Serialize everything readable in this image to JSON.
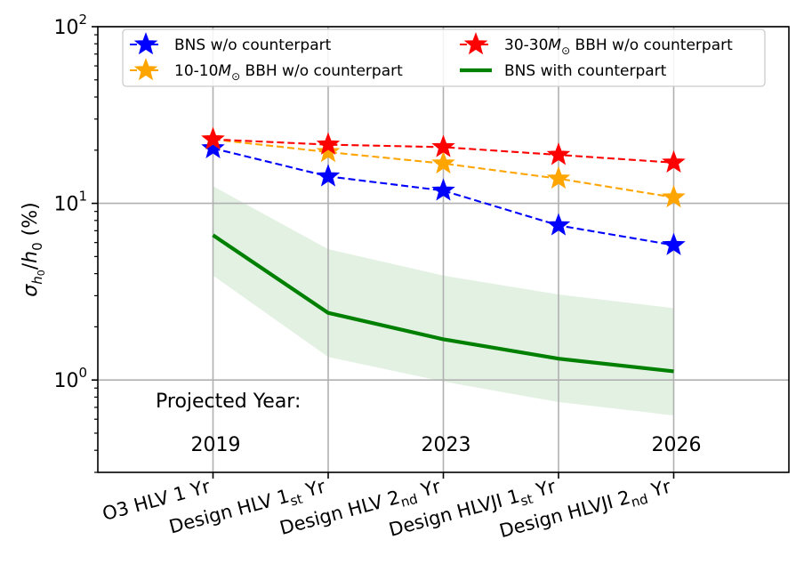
{
  "chart_data": {
    "type": "line",
    "yscale": "log",
    "ylim": [
      0.3,
      100
    ],
    "ylabel_parts": {
      "symbol": "σ",
      "sub": "h",
      "sub2": "0",
      "slash": "/",
      "h": "h",
      "h_sub": "0",
      "unit": "(%)"
    },
    "x_positions": [
      0,
      1,
      2,
      3,
      4
    ],
    "xlim": [
      -1,
      5
    ],
    "x_tick_labels": [
      {
        "main": "O3 HLV 1 Yr",
        "sub": "",
        "tail": ""
      },
      {
        "main": "Design HLV 1",
        "sub": "st",
        "tail": " Yr"
      },
      {
        "main": "Design HLV 2",
        "sub": "nd",
        "tail": " Yr"
      },
      {
        "main": "Design HLVJI 1",
        "sub": "st",
        "tail": " Yr"
      },
      {
        "main": "Design HLVJI 2",
        "sub": "nd",
        "tail": " Yr"
      }
    ],
    "y_ticks": [
      {
        "value": 1,
        "base": "10",
        "exp": "0"
      },
      {
        "value": 10,
        "base": "10",
        "exp": "1"
      },
      {
        "value": 100,
        "base": "10",
        "exp": "2"
      }
    ],
    "series": [
      {
        "name_main": "BNS w/o counterpart",
        "name_sub": "",
        "name_tail": "",
        "color": "#0000ff",
        "style": "dashed-star",
        "values": [
          20.5,
          14.2,
          11.8,
          7.5,
          5.8
        ]
      },
      {
        "name_main": "10-10",
        "name_sub": "⊙",
        "name_tail": " BBH w/o counterpart",
        "name_M": "M",
        "color": "#ffa500",
        "style": "dashed-star",
        "values": [
          23.0,
          19.5,
          16.8,
          13.8,
          10.8
        ]
      },
      {
        "name_main": "30-30",
        "name_sub": "⊙",
        "name_tail": " BBH w/o counterpart",
        "name_M": "M",
        "color": "#ff0000",
        "style": "dashed-star",
        "values": [
          23.0,
          21.5,
          20.8,
          18.8,
          17.0
        ]
      },
      {
        "name_main": "BNS with counterpart",
        "name_sub": "",
        "name_tail": "",
        "color": "#008000",
        "style": "solid",
        "values": [
          6.6,
          2.4,
          1.7,
          1.32,
          1.12
        ]
      }
    ],
    "band": {
      "color": "#008000",
      "upper": [
        12.5,
        5.5,
        3.9,
        3.05,
        2.55
      ],
      "lower": [
        3.9,
        1.35,
        0.98,
        0.75,
        0.63
      ]
    },
    "annotations": {
      "projected_label": "Projected Year:",
      "years": [
        {
          "x": 0,
          "text": "2019"
        },
        {
          "x": 2,
          "text": "2023"
        },
        {
          "x": 4,
          "text": "2026"
        }
      ]
    },
    "legend_position": "top"
  }
}
